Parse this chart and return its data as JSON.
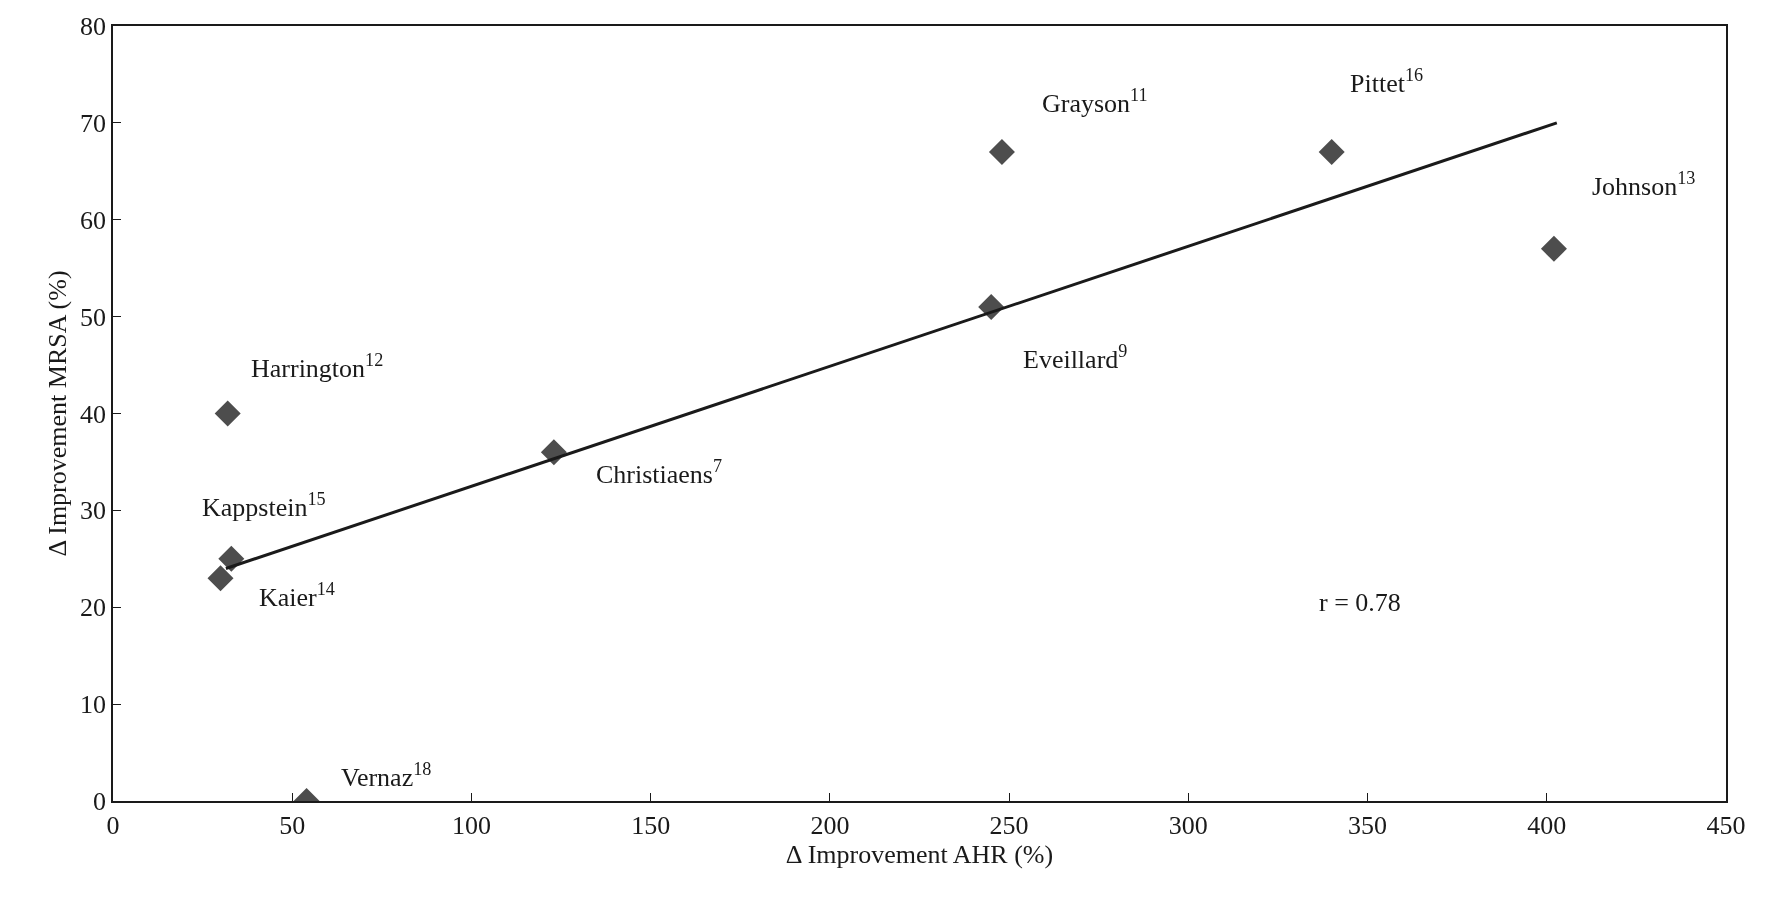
{
  "chart_data": {
    "type": "scatter",
    "xlabel": "Δ Improvement AHR (%)",
    "ylabel": "Δ Improvement MRSA (%)",
    "series": [
      {
        "color": "#4d4d4d",
        "marker": "diamond",
        "x": [
          248,
          340,
          402,
          245,
          32,
          123,
          33,
          30,
          54
        ],
        "values": [
          67,
          67,
          57,
          51,
          40,
          36,
          25,
          23,
          0
        ]
      },
      {
        "type": "line",
        "color": "#1a1a1a",
        "line_style": "solid",
        "marker": "none",
        "x": [
          31.5,
          402.8
        ],
        "values": [
          24,
          70
        ]
      }
    ],
    "annotations": [
      {
        "text": "Grayson$^{11}$",
        "x": 248,
        "y": 67
      },
      {
        "text": "Pittet$^{16}$",
        "x": 340,
        "y": 67
      },
      {
        "text": "Johnson$^{13}$",
        "x": 402,
        "y": 57
      },
      {
        "text": "Eveillard$^{9}$",
        "x": 245,
        "y": 51
      },
      {
        "text": "Harrington$^{12}$",
        "x": 32,
        "y": 40
      },
      {
        "text": "Christiaens$^{7}$",
        "x": 123,
        "y": 36
      },
      {
        "text": "Kappstein$^{15}$",
        "x": 33,
        "y": 25
      },
      {
        "text": "Kaier$^{14}$",
        "x": 30,
        "y": 23
      },
      {
        "text": "Vernaz$^{18}$",
        "x": 54,
        "y": 0
      },
      "r = 0.78"
    ],
    "xlim": [
      0,
      450
    ],
    "xticks": [
      0,
      50,
      100,
      150,
      200,
      250,
      300,
      350,
      400,
      450
    ],
    "ylim": [
      0,
      80
    ],
    "yticks": [
      0,
      10,
      20,
      30,
      40,
      50,
      60,
      70,
      80
    ]
  }
}
